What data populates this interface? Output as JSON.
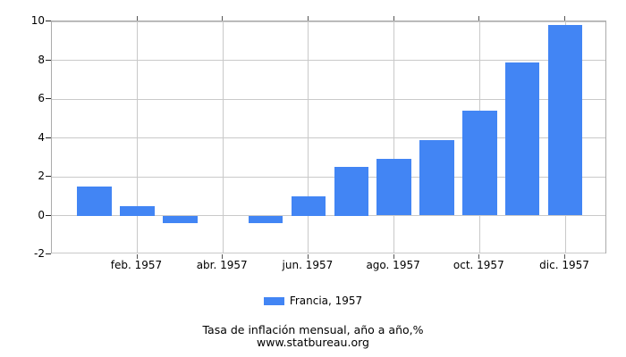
{
  "chart_data": {
    "type": "bar",
    "title": "Tasa de inflación mensual, año a año,%",
    "source": "www.statbureau.org",
    "legend": {
      "label": "Francia, 1957",
      "color": "#4285f4",
      "position": "bottom"
    },
    "categories": [
      "ene. 1957",
      "feb. 1957",
      "mar. 1957",
      "abr. 1957",
      "may. 1957",
      "jun. 1957",
      "jul. 1957",
      "ago. 1957",
      "sep. 1957",
      "oct. 1957",
      "nov. 1957",
      "dic. 1957"
    ],
    "values": [
      1.5,
      0.5,
      -0.4,
      0.0,
      -0.4,
      1.0,
      2.5,
      2.9,
      3.9,
      5.4,
      7.9,
      9.8
    ],
    "x_tick_labels": [
      "feb. 1957",
      "abr. 1957",
      "jun. 1957",
      "ago. 1957",
      "oct. 1957",
      "dic. 1957"
    ],
    "y_ticks": [
      10,
      8,
      6,
      4,
      2,
      0,
      -2
    ],
    "ylim": [
      -2,
      10
    ],
    "xlabel": "",
    "ylabel": "",
    "grid": true,
    "bar_color": "#4285f4",
    "grid_color": "#c9c9c9",
    "border_color": "#ababab"
  }
}
